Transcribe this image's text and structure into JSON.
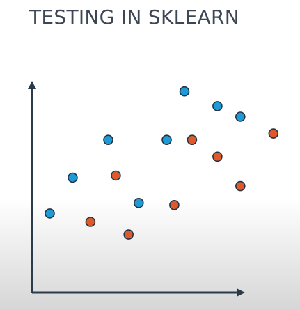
{
  "slide": {
    "title": "TESTING IN SKLEARN"
  },
  "colors": {
    "axis": "#2d3a4a",
    "series_blue": "#1e9bd7",
    "series_red": "#de5a2b",
    "marker_stroke": "#263240",
    "title": "#3c4654"
  },
  "chart_data": {
    "type": "scatter",
    "title": "TESTING IN SKLEARN",
    "xlabel": "",
    "ylabel": "",
    "xlim": [
      0,
      10
    ],
    "ylim": [
      0,
      10
    ],
    "grid": false,
    "axis_tick_labels": false,
    "series": [
      {
        "color": "blue",
        "points": [
          [
            0.7,
            3.1
          ],
          [
            1.6,
            4.8
          ],
          [
            3.0,
            6.6
          ],
          [
            4.2,
            3.6
          ],
          [
            5.3,
            6.6
          ],
          [
            6.0,
            8.9
          ],
          [
            7.3,
            8.2
          ],
          [
            8.2,
            7.7
          ]
        ]
      },
      {
        "color": "red",
        "points": [
          [
            2.3,
            2.7
          ],
          [
            3.3,
            4.9
          ],
          [
            3.8,
            2.1
          ],
          [
            5.6,
            3.5
          ],
          [
            6.3,
            6.6
          ],
          [
            7.3,
            5.8
          ],
          [
            8.2,
            4.4
          ],
          [
            9.5,
            6.9
          ]
        ]
      }
    ]
  }
}
